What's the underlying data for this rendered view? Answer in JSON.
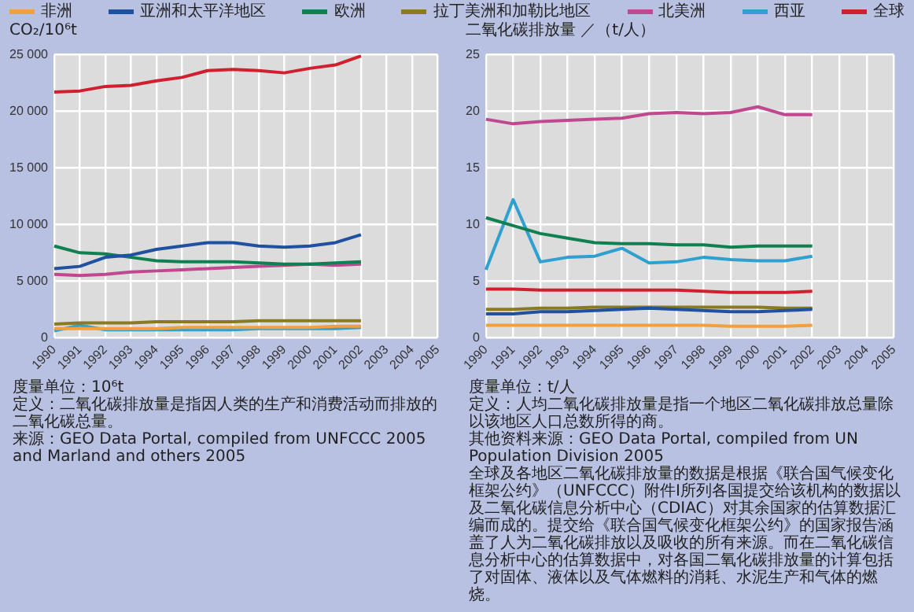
{
  "chart_data": [
    {
      "type": "line",
      "ylabel": "CO₂/10⁶t",
      "categories": [
        "1990",
        "1991",
        "1992",
        "1993",
        "1994",
        "1995",
        "1996",
        "1997",
        "1998",
        "1999",
        "2000",
        "2001",
        "2002",
        "2003",
        "2004",
        "2005"
      ],
      "ylim": [
        0,
        25000
      ],
      "yticks": [
        0,
        {
          "value": 5000,
          "label": "5 000"
        },
        {
          "value": 10000,
          "label": "10 000"
        },
        {
          "value": 15000,
          "label": "15 000"
        },
        {
          "value": 20000,
          "label": "20 000"
        },
        {
          "value": 25000,
          "label": "25 000"
        }
      ],
      "grid": true,
      "legend": "top",
      "marker": "none",
      "line_style": "solid",
      "series": [
        {
          "name": "非洲",
          "color": "#f0a040",
          "values": [
            800,
            800,
            800,
            800,
            800,
            900,
            900,
            900,
            900,
            900,
            900,
            1000,
            1000,
            null,
            null,
            null
          ]
        },
        {
          "name": "亚洲和太平洋地区",
          "color": "#2050a0",
          "values": [
            6100,
            6300,
            7100,
            7300,
            7800,
            8100,
            8400,
            8400,
            8100,
            8000,
            8100,
            8400,
            9100,
            null,
            null,
            null
          ]
        },
        {
          "name": "欧洲",
          "color": "#108050",
          "values": [
            8100,
            7500,
            7400,
            7100,
            6800,
            6700,
            6700,
            6700,
            6600,
            6500,
            6500,
            6600,
            6700,
            null,
            null,
            null
          ]
        },
        {
          "name": "拉丁美洲和加勒比地区",
          "color": "#8a7a20",
          "values": [
            1200,
            1300,
            1300,
            1300,
            1400,
            1400,
            1400,
            1400,
            1500,
            1500,
            1500,
            1500,
            1500,
            null,
            null,
            null
          ]
        },
        {
          "name": "北美洲",
          "color": "#c04890",
          "values": [
            5600,
            5500,
            5600,
            5800,
            5900,
            6000,
            6100,
            6200,
            6300,
            6400,
            6500,
            6400,
            6500,
            null,
            null,
            null
          ]
        },
        {
          "name": "西亚",
          "color": "#30a0d0",
          "values": [
            600,
            1100,
            700,
            700,
            700,
            700,
            700,
            700,
            800,
            800,
            800,
            800,
            900,
            null,
            null,
            null
          ]
        },
        {
          "name": "全球",
          "color": "#d02030",
          "values": [
            21700,
            21800,
            22200,
            22300,
            22700,
            23000,
            23600,
            23700,
            23600,
            23400,
            23800,
            24100,
            24900,
            null,
            null,
            null
          ]
        }
      ],
      "annotations": [
        "度量单位：10⁶t",
        "定义：二氧化碳排放量是指因人类的生产和消费活动而排放的二氧化碳总量。",
        "来源：GEO Data Portal, compiled from UNFCCC 2005 and Marland and others 2005"
      ]
    },
    {
      "type": "line",
      "ylabel": "二氧化碳排放量 ／（t/人）",
      "categories": [
        "1990",
        "1991",
        "1992",
        "1993",
        "1994",
        "1995",
        "1996",
        "1997",
        "1998",
        "1999",
        "2000",
        "2001",
        "2002",
        "2003",
        "2004",
        "2005"
      ],
      "ylim": [
        0,
        25
      ],
      "yticks": [
        0,
        5,
        10,
        15,
        20,
        25
      ],
      "grid": true,
      "marker": "none",
      "line_style": "solid",
      "series": [
        {
          "color": "#f0a040",
          "values": [
            1.1,
            1.1,
            1.1,
            1.1,
            1.1,
            1.1,
            1.1,
            1.1,
            1.1,
            1.0,
            1.0,
            1.0,
            1.1,
            null,
            null,
            null
          ]
        },
        {
          "color": "#2050a0",
          "values": [
            2.1,
            2.1,
            2.3,
            2.3,
            2.4,
            2.5,
            2.6,
            2.5,
            2.4,
            2.3,
            2.3,
            2.4,
            2.5,
            null,
            null,
            null
          ]
        },
        {
          "color": "#108050",
          "values": [
            10.6,
            9.9,
            9.2,
            8.8,
            8.4,
            8.3,
            8.3,
            8.2,
            8.2,
            8.0,
            8.1,
            8.1,
            8.1,
            null,
            null,
            null
          ]
        },
        {
          "color": "#8a7a20",
          "values": [
            2.5,
            2.5,
            2.6,
            2.6,
            2.7,
            2.7,
            2.7,
            2.7,
            2.7,
            2.7,
            2.7,
            2.6,
            2.6,
            null,
            null,
            null
          ]
        },
        {
          "color": "#c04890",
          "values": [
            19.3,
            18.9,
            19.1,
            19.2,
            19.3,
            19.4,
            19.8,
            19.9,
            19.8,
            19.9,
            20.4,
            19.7,
            19.7,
            null,
            null,
            null
          ]
        },
        {
          "color": "#30a0d0",
          "values": [
            6.0,
            12.2,
            6.7,
            7.1,
            7.2,
            7.9,
            6.6,
            6.7,
            7.1,
            6.9,
            6.8,
            6.8,
            7.2,
            null,
            null,
            null
          ]
        },
        {
          "color": "#d02030",
          "values": [
            4.3,
            4.3,
            4.2,
            4.2,
            4.2,
            4.2,
            4.2,
            4.2,
            4.1,
            4.0,
            4.0,
            4.0,
            4.1,
            null,
            null,
            null
          ]
        }
      ],
      "annotations": [
        "度量单位：t/人",
        "定义：人均二氧化碳排放量是指一个地区二氧化碳排放总量除以该地区人口总数所得的商。",
        "其他资料来源：GEO Data Portal, compiled from UN Population Division 2005",
        "全球及各地区二氧化碳排放量的数据是根据《联合国气候变化框架公约》（UNFCCC）附件I所列各国提交给该机构的数据以及二氧化碳信息分析中心（CDIAC）对其余国家的估算数据汇编而成的。提交给《联合国气候变化框架公约》的国家报告涵盖了人为二氧化碳排放以及吸收的所有来源。而在二氧化碳信息分析中心的估算数据中，对各国二氧化碳排放量的计算包括了对固体、液体以及气体燃料的消耗、水泥生产和气体的燃烧。"
      ]
    }
  ]
}
